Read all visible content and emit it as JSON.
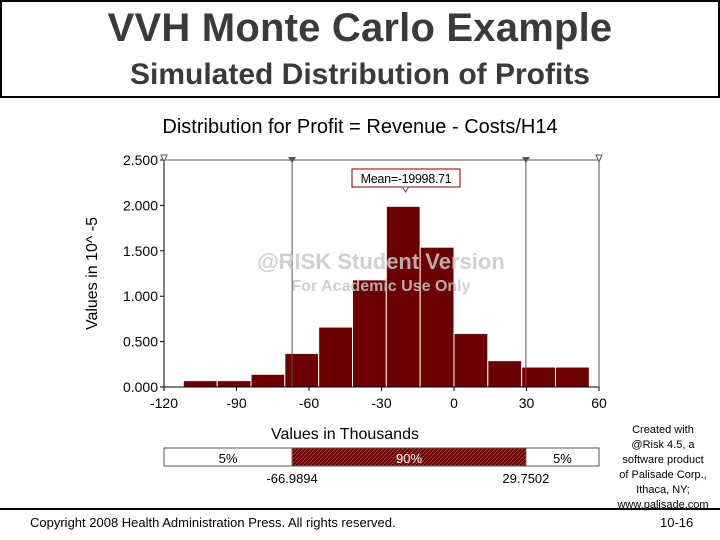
{
  "header": {
    "title": "VVH Monte Carlo Example",
    "subtitle": "Simulated Distribution of Profits"
  },
  "footer": {
    "copyright": "Copyright 2008 Health Administration Press. All rights reserved.",
    "page": "10-16"
  },
  "credit": {
    "lines": [
      "Created with",
      "@Risk 4.5, a",
      "software product",
      "of Palisade Corp.,",
      "Ithaca, NY;",
      "www.palisade.com"
    ]
  },
  "chart_data": {
    "type": "bar",
    "title": "Distribution for Profit = Revenue - Costs/H14",
    "xlabel": "Values in Thousands",
    "ylabel": "Values in 10^ -5",
    "xlim": [
      -120,
      60
    ],
    "ylim": [
      0,
      2.5
    ],
    "x_ticks": [
      "-120",
      "-90",
      "-60",
      "-30",
      "0",
      "30",
      "60"
    ],
    "y_ticks": [
      "0.000",
      "0.500",
      "1.000",
      "1.500",
      "2.000",
      "2.500"
    ],
    "bins": [
      {
        "start": -112,
        "end": -98,
        "value": 0.07
      },
      {
        "start": -98,
        "end": -84,
        "value": 0.07
      },
      {
        "start": -84,
        "end": -70,
        "value": 0.14
      },
      {
        "start": -70,
        "end": -56,
        "value": 0.37
      },
      {
        "start": -56,
        "end": -42,
        "value": 0.66
      },
      {
        "start": -42,
        "end": -28,
        "value": 1.18
      },
      {
        "start": -28,
        "end": -14,
        "value": 1.99
      },
      {
        "start": -14,
        "end": 0,
        "value": 1.54
      },
      {
        "start": 0,
        "end": 14,
        "value": 0.59
      },
      {
        "start": 14,
        "end": 28,
        "value": 0.29
      },
      {
        "start": 28,
        "end": 42,
        "value": 0.22
      },
      {
        "start": 42,
        "end": 56,
        "value": 0.22
      }
    ],
    "mean": -19.99871,
    "mean_label": "Mean=-19998.71",
    "percentile_lines": [
      -66.9894,
      29.7502
    ],
    "percentile_labels": [
      "-66.9894",
      "29.7502"
    ],
    "percentile_bar": {
      "left": "5%",
      "middle": "90%",
      "right": "5%"
    },
    "watermark": [
      "@RISK Student Version",
      "For Academic Use Only"
    ],
    "bar_color": "#6b0000",
    "grid": false
  }
}
